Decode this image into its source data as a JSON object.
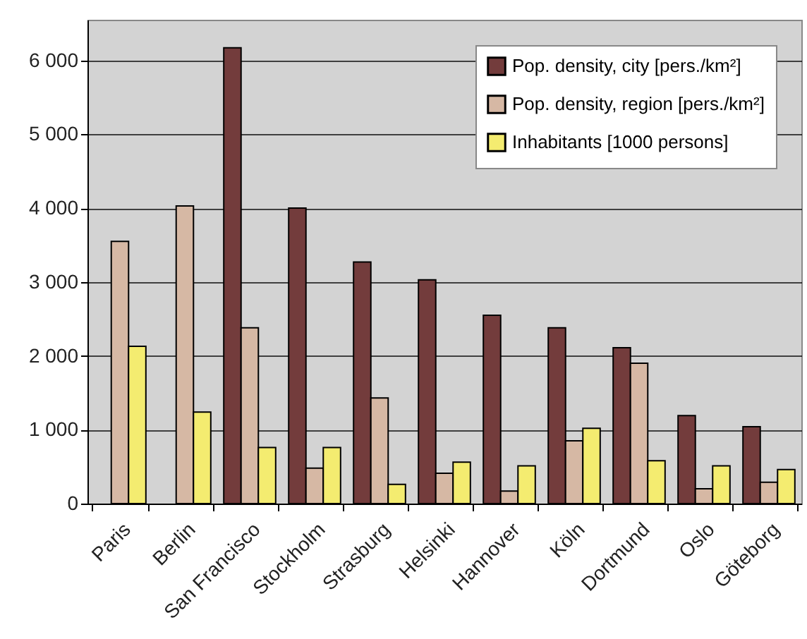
{
  "chart_data": {
    "type": "bar",
    "categories": [
      "Paris",
      "Berlin",
      "San Francisco",
      "Stockholm",
      "Strasburg",
      "Helsinki",
      "Hannover",
      "Köln",
      "Dortmund",
      "Oslo",
      "Göteborg"
    ],
    "series": [
      {
        "name": "Pop. density, city [pers./km²]",
        "color": "#733c3c",
        "values": [
          null,
          null,
          6170,
          4000,
          3270,
          3030,
          2550,
          2380,
          2110,
          1190,
          1040
        ]
      },
      {
        "name": "Pop. density, region [pers./km²]",
        "color": "#d6b8a4",
        "values": [
          3550,
          4030,
          2380,
          480,
          1430,
          410,
          170,
          850,
          1900,
          200,
          290
        ]
      },
      {
        "name": "Inhabitants [1000 persons]",
        "color": "#f4ec70",
        "values": [
          2130,
          1240,
          760,
          760,
          260,
          560,
          510,
          1020,
          580,
          510,
          460
        ]
      }
    ],
    "ylim": [
      0,
      6550
    ],
    "yticks": [
      0,
      {
        "value": 1000,
        "label": "1 000"
      },
      {
        "value": 2000,
        "label": "2 000"
      },
      {
        "value": 3000,
        "label": "3 000"
      },
      {
        "value": 4000,
        "label": "4 000"
      },
      {
        "value": 5000,
        "label": "5 000"
      },
      {
        "value": 6000,
        "label": "6 000"
      }
    ],
    "grid": "y",
    "legend": "top right"
  }
}
